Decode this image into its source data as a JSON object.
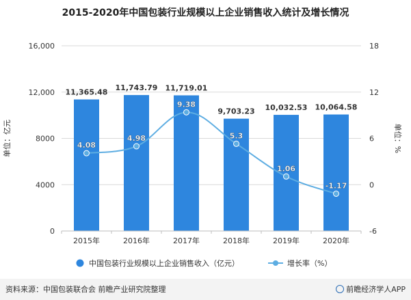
{
  "title": "2015-2020年中国包装行业规模以上企业销售收入统计及增长情况",
  "footer": {
    "source": "资料来源：中国包装联合会 前瞻产业研究院整理",
    "brand": "前瞻经济学人APP"
  },
  "colors": {
    "bar": "#2e86de",
    "line": "#5dade2",
    "grid": "#d9d9d9",
    "footer_bg": "#f3f3f3"
  },
  "chart_data": {
    "type": "bar+line",
    "categories": [
      "2015年",
      "2016年",
      "2017年",
      "2018年",
      "2019年",
      "2020年"
    ],
    "series": [
      {
        "name": "中国包装行业规模以上企业销售收入（亿元）",
        "type": "bar",
        "axis": "left",
        "values": [
          11365.48,
          11743.79,
          11719.01,
          9703.23,
          10032.53,
          10064.58
        ],
        "labels": [
          "11,365.48",
          "11,743.79",
          "11,719.01",
          "9,703.23",
          "10,032.53",
          "10,064.58"
        ]
      },
      {
        "name": "增长率（%）",
        "type": "line",
        "axis": "right",
        "values": [
          4.08,
          4.98,
          9.38,
          5.3,
          1.06,
          -1.17
        ],
        "labels": [
          "4.08",
          "4.98",
          "9.38",
          "5.3",
          "1.06",
          "-1.17"
        ]
      }
    ],
    "left_axis": {
      "label": "单位：亿元",
      "ylim": [
        0,
        16000
      ],
      "ticks": [
        0,
        4000,
        8000,
        12000,
        16000
      ],
      "tick_labels": [
        "0",
        "4000",
        "8000",
        "12,000",
        "16,000"
      ]
    },
    "right_axis": {
      "label": "单位：%",
      "ylim": [
        -6,
        18
      ],
      "ticks": [
        -6,
        0,
        6,
        12,
        18
      ],
      "tick_labels": [
        "-6",
        "0",
        "6",
        "12",
        "18"
      ]
    },
    "grid": true,
    "legend_position": "bottom"
  }
}
